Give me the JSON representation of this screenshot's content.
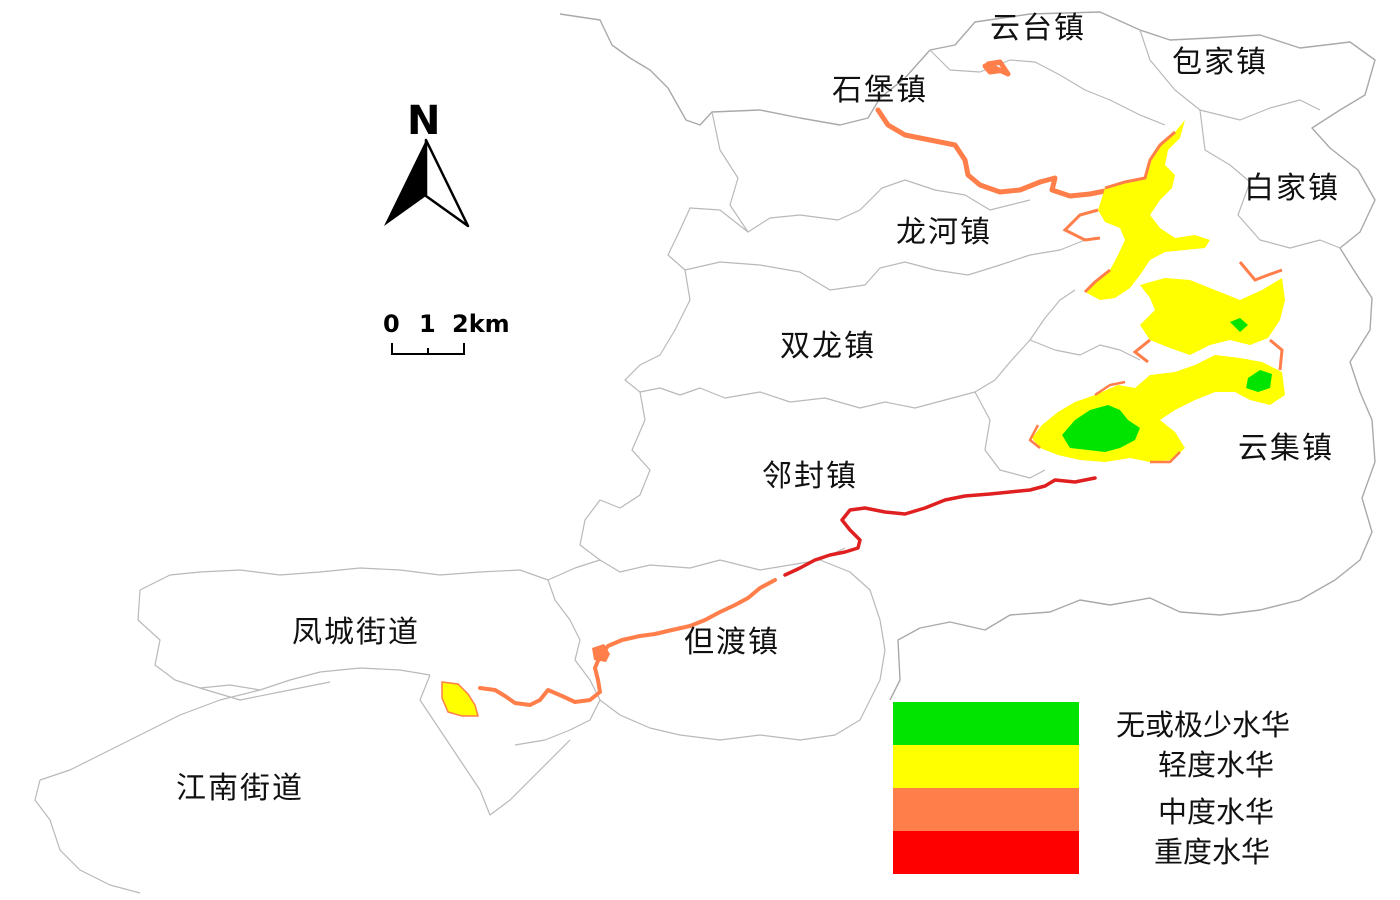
{
  "north_arrow": {
    "letter": "N"
  },
  "scale_bar": {
    "ticks": [
      "0",
      "1",
      "2km"
    ]
  },
  "towns": [
    {
      "id": "yuntai",
      "name": "云台镇"
    },
    {
      "id": "baojia",
      "name": "包家镇"
    },
    {
      "id": "shibao",
      "name": "石堡镇"
    },
    {
      "id": "baijia",
      "name": "白家镇"
    },
    {
      "id": "longhe",
      "name": "龙河镇"
    },
    {
      "id": "shuanglong",
      "name": "双龙镇"
    },
    {
      "id": "yunji",
      "name": "云集镇"
    },
    {
      "id": "linfeng",
      "name": "邻封镇"
    },
    {
      "id": "fengcheng",
      "name": "凤城街道"
    },
    {
      "id": "dandu",
      "name": "但渡镇"
    },
    {
      "id": "jiangnan",
      "name": "江南街道"
    }
  ],
  "legend": {
    "items": [
      {
        "label": "无或极少水华",
        "color": "#00e400"
      },
      {
        "label": "轻度水华",
        "color": "#ffff00"
      },
      {
        "label": "中度水华",
        "color": "#ff7e4a"
      },
      {
        "label": "重度水华",
        "color": "#ff0000"
      }
    ]
  },
  "colors": {
    "none": "#00e400",
    "light": "#ffff00",
    "moderate": "#ff7e4a",
    "severe": "#ff0000",
    "boundary": "#b9b9b9"
  }
}
